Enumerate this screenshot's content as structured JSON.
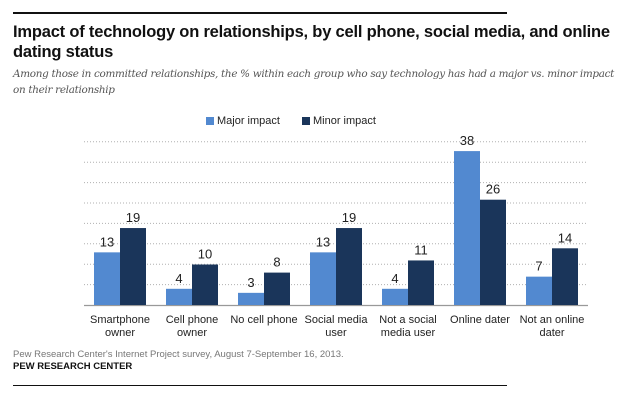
{
  "header": {
    "title": "Impact of technology on relationships, by cell phone, social media, and online dating status",
    "subtitle": "Among those in committed relationships, the % within each group who say technology has had a major vs. minor impact on their relationship"
  },
  "footer": {
    "source": "Pew Research Center's Internet Project survey, August 7-September 16, 2013.",
    "brand": "PEW RESEARCH CENTER"
  },
  "colors": {
    "major": "#5289d0",
    "minor": "#1a355a",
    "grid": "#b0b0b0",
    "axis": "#999999"
  },
  "chart_data": {
    "type": "bar",
    "title": "Impact of technology on relationships, by cell phone, social media, and online dating status",
    "subtitle": "Among those in committed relationships, the % within each group who say technology has had a major vs. minor impact on their relationship",
    "xlabel": "",
    "ylabel": "",
    "ylim": [
      0,
      40
    ],
    "grid": true,
    "legend": "top-center",
    "categories": [
      [
        "Smartphone",
        "owner"
      ],
      [
        "Cell phone",
        "owner"
      ],
      [
        "No cell phone"
      ],
      [
        "Social media",
        "user"
      ],
      [
        "Not a social",
        "media user"
      ],
      [
        "Online dater"
      ],
      [
        "Not an online",
        "dater"
      ]
    ],
    "series": [
      {
        "name": "Major impact",
        "values": [
          13,
          4,
          3,
          13,
          4,
          38,
          7
        ]
      },
      {
        "name": "Minor impact",
        "values": [
          19,
          10,
          8,
          19,
          11,
          26,
          14
        ]
      }
    ]
  }
}
